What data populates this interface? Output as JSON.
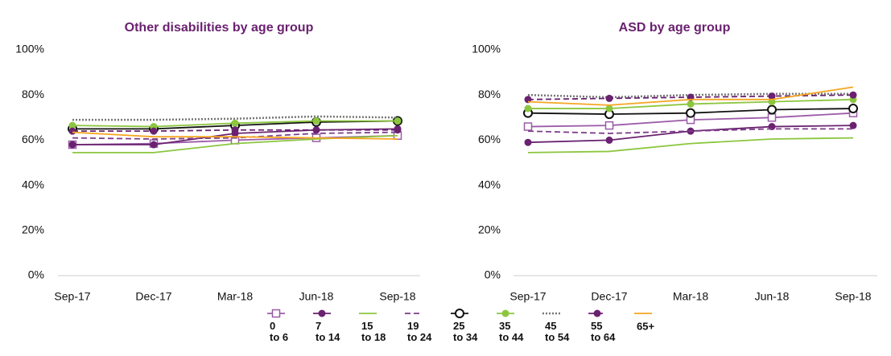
{
  "chart_data": [
    {
      "type": "line",
      "title": "Other disabilities by age group",
      "categories": [
        "Sep-17",
        "Dec-17",
        "Mar-18",
        "Jun-18",
        "Sep-18"
      ],
      "ylim": [
        0,
        100
      ],
      "yticks": [
        {
          "value": 0,
          "label": "0%"
        },
        {
          "value": 20,
          "label": "20%"
        },
        {
          "value": 40,
          "label": "40%"
        },
        {
          "value": 60,
          "label": "60%"
        },
        {
          "value": 80,
          "label": "80%"
        },
        {
          "value": 100,
          "label": "100%"
        }
      ],
      "grid": false,
      "series": [
        {
          "name": "0 to 6",
          "color": "#9b5ba8",
          "dash": "solid",
          "marker": "open-square",
          "values": [
            58,
            58.5,
            60,
            61,
            62
          ]
        },
        {
          "name": "7 to 14",
          "color": "#6a2270",
          "dash": "solid",
          "marker": "filled-circle",
          "values": [
            58,
            58,
            63,
            64.5,
            65
          ]
        },
        {
          "name": "15 to 18",
          "color": "#8cc63f",
          "dash": "solid",
          "marker": "none",
          "values": [
            54.5,
            54.5,
            58.5,
            60.5,
            62
          ]
        },
        {
          "name": "19 to 24",
          "color": "#7d3c8a",
          "dash": "dashed",
          "marker": "none",
          "values": [
            61,
            60.5,
            61,
            63,
            63.5
          ]
        },
        {
          "name": "25 to 34",
          "color": "#111111",
          "dash": "solid",
          "marker": "open-circle",
          "values": [
            65,
            65,
            66.5,
            68,
            68.5
          ]
        },
        {
          "name": "35 to 44",
          "color": "#8cc63f",
          "dash": "solid",
          "marker": "filled-circle",
          "values": [
            66.5,
            66,
            67.5,
            68.5,
            68.5
          ]
        },
        {
          "name": "45 to 54",
          "color": "#777777",
          "dash": "dotted",
          "marker": "none",
          "values": [
            69,
            69,
            69.5,
            70.5,
            70
          ]
        },
        {
          "name": "55 to 64",
          "color": "#6a2270",
          "dash": "dashed",
          "marker": "filled-circle",
          "values": [
            64,
            64,
            64.5,
            64.5,
            64.5
          ]
        },
        {
          "name": "65+",
          "color": "#f5a623",
          "dash": "solid",
          "marker": "none",
          "values": [
            63.5,
            61.5,
            61.5,
            61,
            60.5
          ]
        }
      ]
    },
    {
      "type": "line",
      "title": "ASD by age group",
      "categories": [
        "Sep-17",
        "Dec-17",
        "Mar-18",
        "Jun-18",
        "Sep-18"
      ],
      "ylim": [
        0,
        100
      ],
      "yticks": [
        {
          "value": 0,
          "label": "0%"
        },
        {
          "value": 20,
          "label": "20%"
        },
        {
          "value": 40,
          "label": "40%"
        },
        {
          "value": 60,
          "label": "60%"
        },
        {
          "value": 80,
          "label": "80%"
        },
        {
          "value": 100,
          "label": "100%"
        }
      ],
      "grid": false,
      "series": [
        {
          "color": "#9b5ba8",
          "dash": "solid",
          "marker": "open-square",
          "values": [
            66,
            66.5,
            69,
            70,
            72
          ]
        },
        {
          "color": "#6a2270",
          "dash": "solid",
          "marker": "filled-circle",
          "values": [
            59,
            60,
            64,
            66,
            66.5
          ]
        },
        {
          "color": "#8cc63f",
          "dash": "solid",
          "marker": "none",
          "values": [
            54.5,
            55,
            58.5,
            60.5,
            61
          ]
        },
        {
          "color": "#7d3c8a",
          "dash": "dashed",
          "marker": "none",
          "values": [
            64,
            63,
            64,
            65,
            65
          ]
        },
        {
          "color": "#111111",
          "dash": "solid",
          "marker": "open-circle",
          "values": [
            72,
            71.5,
            72,
            73.5,
            74
          ]
        },
        {
          "color": "#8cc63f",
          "dash": "solid",
          "marker": "filled-circle",
          "values": [
            74,
            74,
            76,
            77,
            78
          ]
        },
        {
          "color": "#777777",
          "dash": "dotted",
          "marker": "none",
          "values": [
            80,
            79,
            80,
            80.5,
            80.5
          ]
        },
        {
          "color": "#6a2270",
          "dash": "dashed",
          "marker": "filled-circle",
          "values": [
            78,
            78.5,
            79,
            79.5,
            80
          ]
        },
        {
          "color": "#f5a623",
          "dash": "solid",
          "marker": "none",
          "values": [
            77,
            75.5,
            78,
            78,
            83.5
          ]
        }
      ]
    }
  ]
}
